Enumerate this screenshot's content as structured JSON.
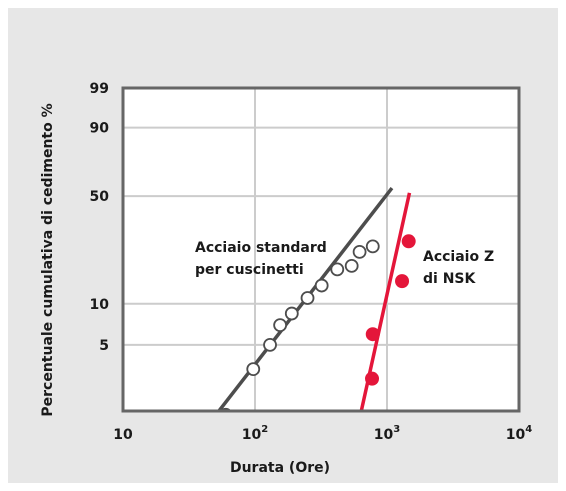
{
  "chart_data": {
    "type": "scatter",
    "x_scale": "log",
    "y_scale": "weibull",
    "xlim": [
      10,
      10000
    ],
    "ylim": [
      2,
      99
    ],
    "xlabel": "Durata (Ore)",
    "ylabel": "Percentuale cumulativa di cedimento %",
    "x_ticks": [
      {
        "value": 10,
        "base": "10",
        "exp": ""
      },
      {
        "value": 100,
        "base": "10",
        "exp": "2"
      },
      {
        "value": 1000,
        "base": "10",
        "exp": "3"
      },
      {
        "value": 10000,
        "base": "10",
        "exp": "4"
      }
    ],
    "y_ticks": [
      {
        "value": 5,
        "label": "5"
      },
      {
        "value": 10,
        "label": "10"
      },
      {
        "value": 50,
        "label": "50"
      },
      {
        "value": 90,
        "label": "90"
      },
      {
        "value": 99,
        "label": "99"
      }
    ],
    "grid": true,
    "series": [
      {
        "annotation_lines": [
          "Acciaio standard",
          "per cuscinetti"
        ],
        "color": "#4d4d4d",
        "marker": "open-circle",
        "points": [
          {
            "x": 60,
            "y": 1.5
          },
          {
            "x": 97,
            "y": 3.3
          },
          {
            "x": 130,
            "y": 5
          },
          {
            "x": 155,
            "y": 7
          },
          {
            "x": 190,
            "y": 8.5
          },
          {
            "x": 250,
            "y": 11
          },
          {
            "x": 320,
            "y": 13.5
          },
          {
            "x": 420,
            "y": 17.5
          },
          {
            "x": 540,
            "y": 18.5
          },
          {
            "x": 620,
            "y": 23
          },
          {
            "x": 780,
            "y": 25
          }
        ],
        "fit_line": [
          {
            "x": 48,
            "y": 1.4
          },
          {
            "x": 1090,
            "y": 55
          }
        ]
      },
      {
        "annotation_lines": [
          "Acciaio Z",
          "di NSK"
        ],
        "color": "#e4163a",
        "marker": "filled-circle",
        "points": [
          {
            "x": 770,
            "y": 2.8
          },
          {
            "x": 780,
            "y": 6
          },
          {
            "x": 1300,
            "y": 14.5
          },
          {
            "x": 1460,
            "y": 27
          }
        ],
        "fit_line": [
          {
            "x": 620,
            "y": 1.4
          },
          {
            "x": 1480,
            "y": 52
          }
        ]
      }
    ]
  }
}
